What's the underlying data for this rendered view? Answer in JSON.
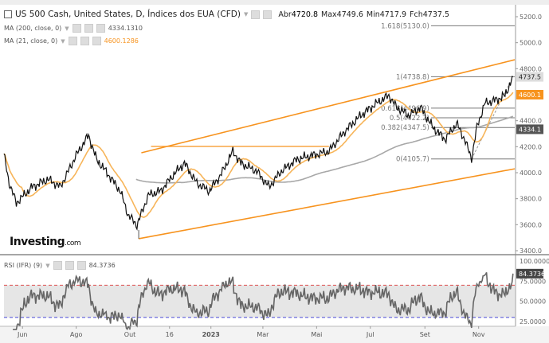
{
  "header": {
    "title": "US 500 Cash, United States, D, Índices dos EUA (CFD)",
    "open_label": "Abr",
    "open": "4720.8",
    "high_label": "Max",
    "high": "4749.6",
    "low_label": "Min",
    "low": "4717.9",
    "close_label": "Fch",
    "close": "4737.5"
  },
  "indicators": [
    {
      "label": "MA (200, close, 0)",
      "value": "4334.1310",
      "color": "#999999"
    },
    {
      "label": "MA (21, close, 0)",
      "value": "4600.1286",
      "color": "#f7931e"
    }
  ],
  "rsi": {
    "label": "RSI (IFR) (9)",
    "value": "84.3736",
    "badge": "84.3736",
    "overbought": 70,
    "oversold": 30
  },
  "logo": {
    "text": "Investing",
    "suffix": ".com"
  },
  "price_badges": {
    "last": "4737.5",
    "ma21": "4600.1",
    "ma200": "4334.1"
  },
  "fib_labels": [
    "1.618(5130.0)",
    "1(4738.8)",
    "0.618(4496.9)",
    "0.5(4422.2)",
    "0.382(4347.5)",
    "0(4105.7)"
  ],
  "colors": {
    "channel": "#f7931e",
    "ma21": "#f7b55a",
    "ma200": "#a8a8a8",
    "price": "#111111",
    "rsi": "#666666",
    "overbought": "#e05050",
    "oversold": "#4a4ad8",
    "rsi_band": "#e6e6e6"
  },
  "chart_data": {
    "type": "line",
    "xlim": [
      "2022-05-11",
      "2023-12-12"
    ],
    "ylim": [
      3400,
      5200
    ],
    "y_ticks": [
      "5200.0",
      "5000.0",
      "4800.0",
      "4400.0",
      "4200.0",
      "4000.0",
      "3800.0",
      "3600.0",
      "3400.0"
    ],
    "x_ticks": [
      {
        "label": "Jun",
        "date": "2022-06-01"
      },
      {
        "label": "Ago",
        "date": "2022-08-01"
      },
      {
        "label": "Out",
        "date": "2022-10-01"
      },
      {
        "label": "16",
        "date": "2022-11-15"
      },
      {
        "label": "2023",
        "date": "2023-01-01"
      },
      {
        "label": "Mar",
        "date": "2023-03-01"
      },
      {
        "label": "Mai",
        "date": "2023-05-01"
      },
      {
        "label": "Jul",
        "date": "2023-07-01"
      },
      {
        "label": "Set",
        "date": "2023-09-01"
      },
      {
        "label": "Nov",
        "date": "2023-11-01"
      }
    ],
    "price": [
      [
        "2022-05-11",
        4134
      ],
      [
        "2022-05-17",
        3920
      ],
      [
        "2022-05-25",
        3767
      ],
      [
        "2022-06-12",
        3890
      ],
      [
        "2022-06-30",
        3950
      ],
      [
        "2022-07-14",
        3890
      ],
      [
        "2022-08-01",
        4134
      ],
      [
        "2022-08-15",
        4288
      ],
      [
        "2022-08-24",
        4104
      ],
      [
        "2022-09-07",
        3981
      ],
      [
        "2022-09-20",
        3859
      ],
      [
        "2022-09-29",
        3675
      ],
      [
        "2022-10-09",
        3596
      ],
      [
        "2022-10-22",
        3828
      ],
      [
        "2022-11-05",
        3859
      ],
      [
        "2022-11-19",
        3981
      ],
      [
        "2022-12-02",
        4073
      ],
      [
        "2022-12-16",
        3920
      ],
      [
        "2022-12-30",
        3859
      ],
      [
        "2023-01-12",
        3981
      ],
      [
        "2023-01-26",
        4165
      ],
      [
        "2023-02-04",
        4073
      ],
      [
        "2023-02-22",
        4012
      ],
      [
        "2023-03-08",
        3890
      ],
      [
        "2023-03-22",
        4012
      ],
      [
        "2023-04-09",
        4104
      ],
      [
        "2023-04-27",
        4134
      ],
      [
        "2023-05-15",
        4165
      ],
      [
        "2023-06-02",
        4318
      ],
      [
        "2023-06-20",
        4440
      ],
      [
        "2023-07-08",
        4533
      ],
      [
        "2023-07-22",
        4594
      ],
      [
        "2023-07-31",
        4502
      ],
      [
        "2023-08-14",
        4440
      ],
      [
        "2023-08-27",
        4502
      ],
      [
        "2023-09-10",
        4349
      ],
      [
        "2023-09-24",
        4257
      ],
      [
        "2023-10-07",
        4379
      ],
      [
        "2023-10-16",
        4257
      ],
      [
        "2023-10-24",
        4110
      ],
      [
        "2023-10-30",
        4349
      ],
      [
        "2023-11-08",
        4533
      ],
      [
        "2023-11-22",
        4563
      ],
      [
        "2023-12-01",
        4594
      ],
      [
        "2023-12-10",
        4737.5
      ]
    ],
    "channel_upper": [
      [
        "2022-10-14",
        4153
      ],
      [
        "2023-12-17",
        4869
      ]
    ],
    "channel_lower": [
      [
        "2022-10-11",
        3492
      ],
      [
        "2023-12-17",
        4030
      ]
    ],
    "horizontal_line": {
      "price": 4202,
      "from": "2022-10-25",
      "to": "2023-05-15"
    },
    "fib_levels": [
      5130.0,
      4738.8,
      4496.9,
      4422.2,
      4347.5,
      4105.7
    ],
    "rsi_ylim": [
      15,
      105
    ],
    "rsi_ticks": [
      "100.0000",
      "75.0000",
      "50.0000",
      "25.0000"
    ]
  }
}
